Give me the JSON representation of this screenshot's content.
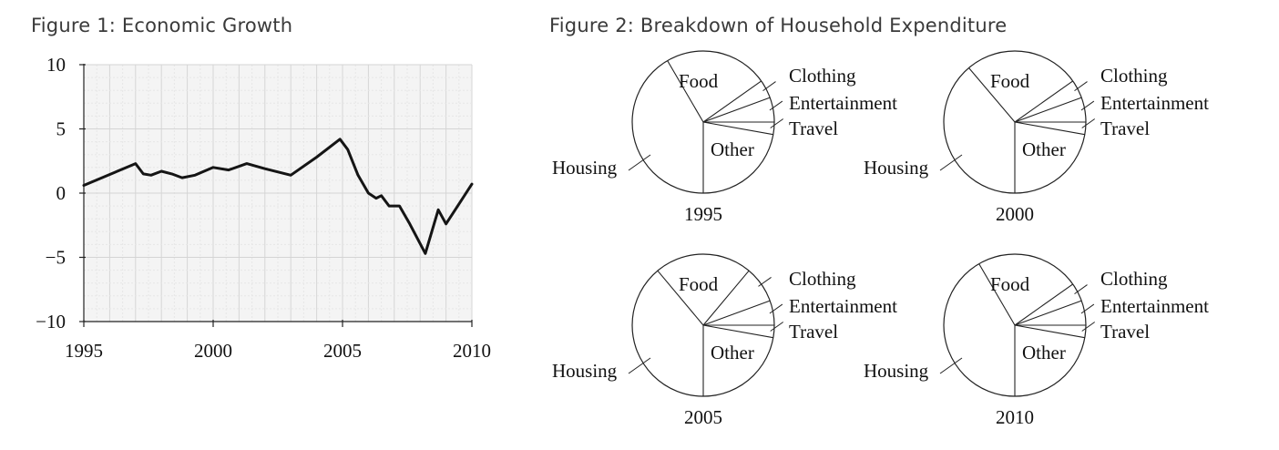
{
  "figure1": {
    "title": "Figure 1: Economic Growth",
    "chart_data": {
      "type": "line",
      "title": "Figure 1: Economic Growth",
      "xlabel": "",
      "ylabel": "",
      "xlim": [
        1995,
        2010
      ],
      "ylim": [
        -10,
        10
      ],
      "x_ticks": [
        1995,
        2000,
        2005,
        2010
      ],
      "y_ticks": [
        10,
        5,
        0,
        -5,
        -10
      ],
      "x_tick_labels": [
        "1995",
        "2000",
        "2005",
        "2010"
      ],
      "y_tick_labels": [
        "10",
        "5",
        "0",
        "−5",
        "−10"
      ],
      "grid": true,
      "series": [
        {
          "x": [
            1995,
            1997,
            1997.3,
            1997.6,
            1998,
            1998.4,
            1998.8,
            1999.3,
            2000,
            2000.6,
            2001.3,
            2002,
            2003,
            2004,
            2004.9,
            2005.2,
            2005.6,
            2006,
            2006.3,
            2006.5,
            2006.8,
            2007.2,
            2007.6,
            2008.2,
            2008.7,
            2009.0,
            2010
          ],
          "y": [
            0.6,
            2.3,
            1.5,
            1.4,
            1.7,
            1.5,
            1.2,
            1.4,
            2.0,
            1.8,
            2.3,
            1.9,
            1.4,
            2.8,
            4.2,
            3.4,
            1.4,
            0.0,
            -0.4,
            -0.2,
            -1.0,
            -1.0,
            -2.4,
            -4.7,
            -1.3,
            -2.4,
            0.7
          ]
        }
      ],
      "color": "#151515"
    }
  },
  "figure2": {
    "title": "Figure 2: Breakdown of Household Expenditure",
    "chart_data": [
      {
        "type": "pie",
        "year": "1995",
        "categories": [
          "Other",
          "Travel",
          "Entertainment",
          "Clothing",
          "Food",
          "Housing"
        ],
        "values": [
          22.2,
          2.8,
          5.6,
          4.2,
          23.6,
          41.6
        ]
      },
      {
        "type": "pie",
        "year": "2000",
        "categories": [
          "Other",
          "Travel",
          "Entertainment",
          "Clothing",
          "Food",
          "Housing"
        ],
        "values": [
          22.2,
          2.8,
          5.6,
          4.2,
          26.4,
          38.8
        ]
      },
      {
        "type": "pie",
        "year": "2005",
        "categories": [
          "Other",
          "Travel",
          "Entertainment",
          "Clothing",
          "Food",
          "Housing"
        ],
        "values": [
          22.2,
          2.8,
          5.6,
          8.3,
          22.2,
          38.9
        ]
      },
      {
        "type": "pie",
        "year": "2010",
        "categories": [
          "Other",
          "Travel",
          "Entertainment",
          "Clothing",
          "Food",
          "Housing"
        ],
        "values": [
          22.2,
          2.8,
          5.6,
          4.2,
          23.6,
          41.6
        ]
      }
    ]
  }
}
